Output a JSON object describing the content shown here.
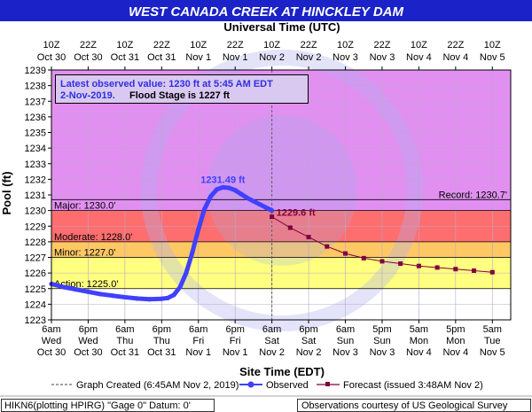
{
  "chart_data": {
    "type": "line",
    "title": "WEST CANADA CREEK AT HINCKLEY DAM",
    "top_axis_title": "Universal Time (UTC)",
    "xlabel": "Site Time (EDT)",
    "ylabel": "Pool (ft)",
    "ylim": [
      1223,
      1239
    ],
    "yticks": [
      1223,
      1224,
      1225,
      1226,
      1227,
      1228,
      1229,
      1230,
      1231,
      1232,
      1233,
      1234,
      1235,
      1236,
      1237,
      1238,
      1239
    ],
    "xlim_hours": [
      0,
      150
    ],
    "bottom_ticks": [
      {
        "h": 0,
        "l1": "6am",
        "l2": "Wed",
        "l3": "Oct 30"
      },
      {
        "h": 12,
        "l1": "6pm",
        "l2": "Wed",
        "l3": "Oct 30"
      },
      {
        "h": 24,
        "l1": "6am",
        "l2": "Thu",
        "l3": "Oct 31"
      },
      {
        "h": 36,
        "l1": "6pm",
        "l2": "Thu",
        "l3": "Oct 31"
      },
      {
        "h": 48,
        "l1": "6am",
        "l2": "Fri",
        "l3": "Nov 1"
      },
      {
        "h": 60,
        "l1": "6pm",
        "l2": "Fri",
        "l3": "Nov 1"
      },
      {
        "h": 72,
        "l1": "6am",
        "l2": "Sat",
        "l3": "Nov 2"
      },
      {
        "h": 84,
        "l1": "6pm",
        "l2": "Sat",
        "l3": "Nov 2"
      },
      {
        "h": 96,
        "l1": "6am",
        "l2": "Sun",
        "l3": "Nov 3"
      },
      {
        "h": 108,
        "l1": "5pm",
        "l2": "Sun",
        "l3": "Nov 3"
      },
      {
        "h": 120,
        "l1": "5am",
        "l2": "Mon",
        "l3": "Nov 4"
      },
      {
        "h": 132,
        "l1": "5pm",
        "l2": "Mon",
        "l3": "Nov 4"
      },
      {
        "h": 144,
        "l1": "5am",
        "l2": "Tue",
        "l3": "Nov 5"
      }
    ],
    "top_ticks": [
      {
        "h": 0,
        "l1": "10Z",
        "l2": "Oct 30"
      },
      {
        "h": 12,
        "l1": "22Z",
        "l2": "Oct 30"
      },
      {
        "h": 24,
        "l1": "10Z",
        "l2": "Oct 31"
      },
      {
        "h": 36,
        "l1": "22Z",
        "l2": "Oct 31"
      },
      {
        "h": 48,
        "l1": "10Z",
        "l2": "Nov 1"
      },
      {
        "h": 60,
        "l1": "22Z",
        "l2": "Nov 1"
      },
      {
        "h": 72,
        "l1": "10Z",
        "l2": "Nov 2"
      },
      {
        "h": 84,
        "l1": "22Z",
        "l2": "Nov 2"
      },
      {
        "h": 96,
        "l1": "10Z",
        "l2": "Nov 3"
      },
      {
        "h": 108,
        "l1": "22Z",
        "l2": "Nov 3"
      },
      {
        "h": 120,
        "l1": "10Z",
        "l2": "Nov 4"
      },
      {
        "h": 132,
        "l1": "22Z",
        "l2": "Nov 4"
      },
      {
        "h": 144,
        "l1": "10Z",
        "l2": "Nov 5"
      }
    ],
    "bands": [
      {
        "from": 1223,
        "to": 1225,
        "color": "#ffffff"
      },
      {
        "from": 1225,
        "to": 1227,
        "color": "#ffff80"
      },
      {
        "from": 1227,
        "to": 1228,
        "color": "#ffc864"
      },
      {
        "from": 1228,
        "to": 1230,
        "color": "#ff6e6e"
      },
      {
        "from": 1230,
        "to": 1239,
        "color": "#e28ff2"
      }
    ],
    "stage_lines": [
      {
        "value": 1225,
        "label": "Action: 1225.0'"
      },
      {
        "value": 1227,
        "label": "Minor: 1227.0'"
      },
      {
        "value": 1228,
        "label": "Moderate: 1228.0'"
      },
      {
        "value": 1230,
        "label": "Major: 1230.0'"
      }
    ],
    "record": {
      "value": 1230.7,
      "label": "Record: 1230.7'"
    },
    "observed": {
      "name": "Observed",
      "color": "#4040ff",
      "points": [
        [
          0,
          1225.3
        ],
        [
          4,
          1225.1
        ],
        [
          8,
          1224.95
        ],
        [
          12,
          1224.8
        ],
        [
          16,
          1224.65
        ],
        [
          20,
          1224.55
        ],
        [
          24,
          1224.45
        ],
        [
          28,
          1224.37
        ],
        [
          32,
          1224.32
        ],
        [
          36,
          1224.35
        ],
        [
          38,
          1224.4
        ],
        [
          40,
          1224.6
        ],
        [
          42,
          1225.1
        ],
        [
          44,
          1226.0
        ],
        [
          46,
          1227.3
        ],
        [
          48,
          1228.8
        ],
        [
          50,
          1230.1
        ],
        [
          52,
          1230.9
        ],
        [
          54,
          1231.35
        ],
        [
          56,
          1231.49
        ],
        [
          58,
          1231.45
        ],
        [
          60,
          1231.3
        ],
        [
          62,
          1231.05
        ],
        [
          64,
          1230.8
        ],
        [
          66,
          1230.6
        ],
        [
          68,
          1230.4
        ],
        [
          70,
          1230.2
        ],
        [
          72,
          1230.0
        ]
      ]
    },
    "observed_peak": {
      "h": 56,
      "v": 1231.49,
      "label": "1231.49 ft"
    },
    "forecast": {
      "name": "Forecast (issued 3:48AM Nov 2)",
      "color": "#800040",
      "points": [
        [
          72,
          1229.6
        ],
        [
          78,
          1228.9
        ],
        [
          84,
          1228.3
        ],
        [
          90,
          1227.7
        ],
        [
          96,
          1227.25
        ],
        [
          102,
          1226.95
        ],
        [
          108,
          1226.75
        ],
        [
          114,
          1226.6
        ],
        [
          120,
          1226.45
        ],
        [
          126,
          1226.35
        ],
        [
          132,
          1226.25
        ],
        [
          138,
          1226.15
        ],
        [
          144,
          1226.05
        ]
      ]
    },
    "forecast_start_label": {
      "h": 72,
      "v": 1229.6,
      "label": "1229.6 ft"
    },
    "created_h": 72,
    "info_box": {
      "line1": "Latest observed value: 1230 ft at 5:45 AM EDT",
      "line2a": "2-Nov-2019.",
      "line2b": "Flood Stage is 1227 ft"
    },
    "legend": {
      "created": "Graph Created (6:45AM Nov 2, 2019)",
      "observed": "Observed",
      "forecast": "Forecast (issued 3:48AM Nov 2)"
    },
    "footer_left": "HIKN6(plotting HPIRG) \"Gage 0\" Datum: 0'",
    "footer_right": "Observations courtesy of US Geological Survey",
    "watermark": "NATIONAL OCEANIC AND ATMOSPHERIC ADMINISTRATION U.S. DEPARTMENT OF COMMERCE NOAA"
  }
}
